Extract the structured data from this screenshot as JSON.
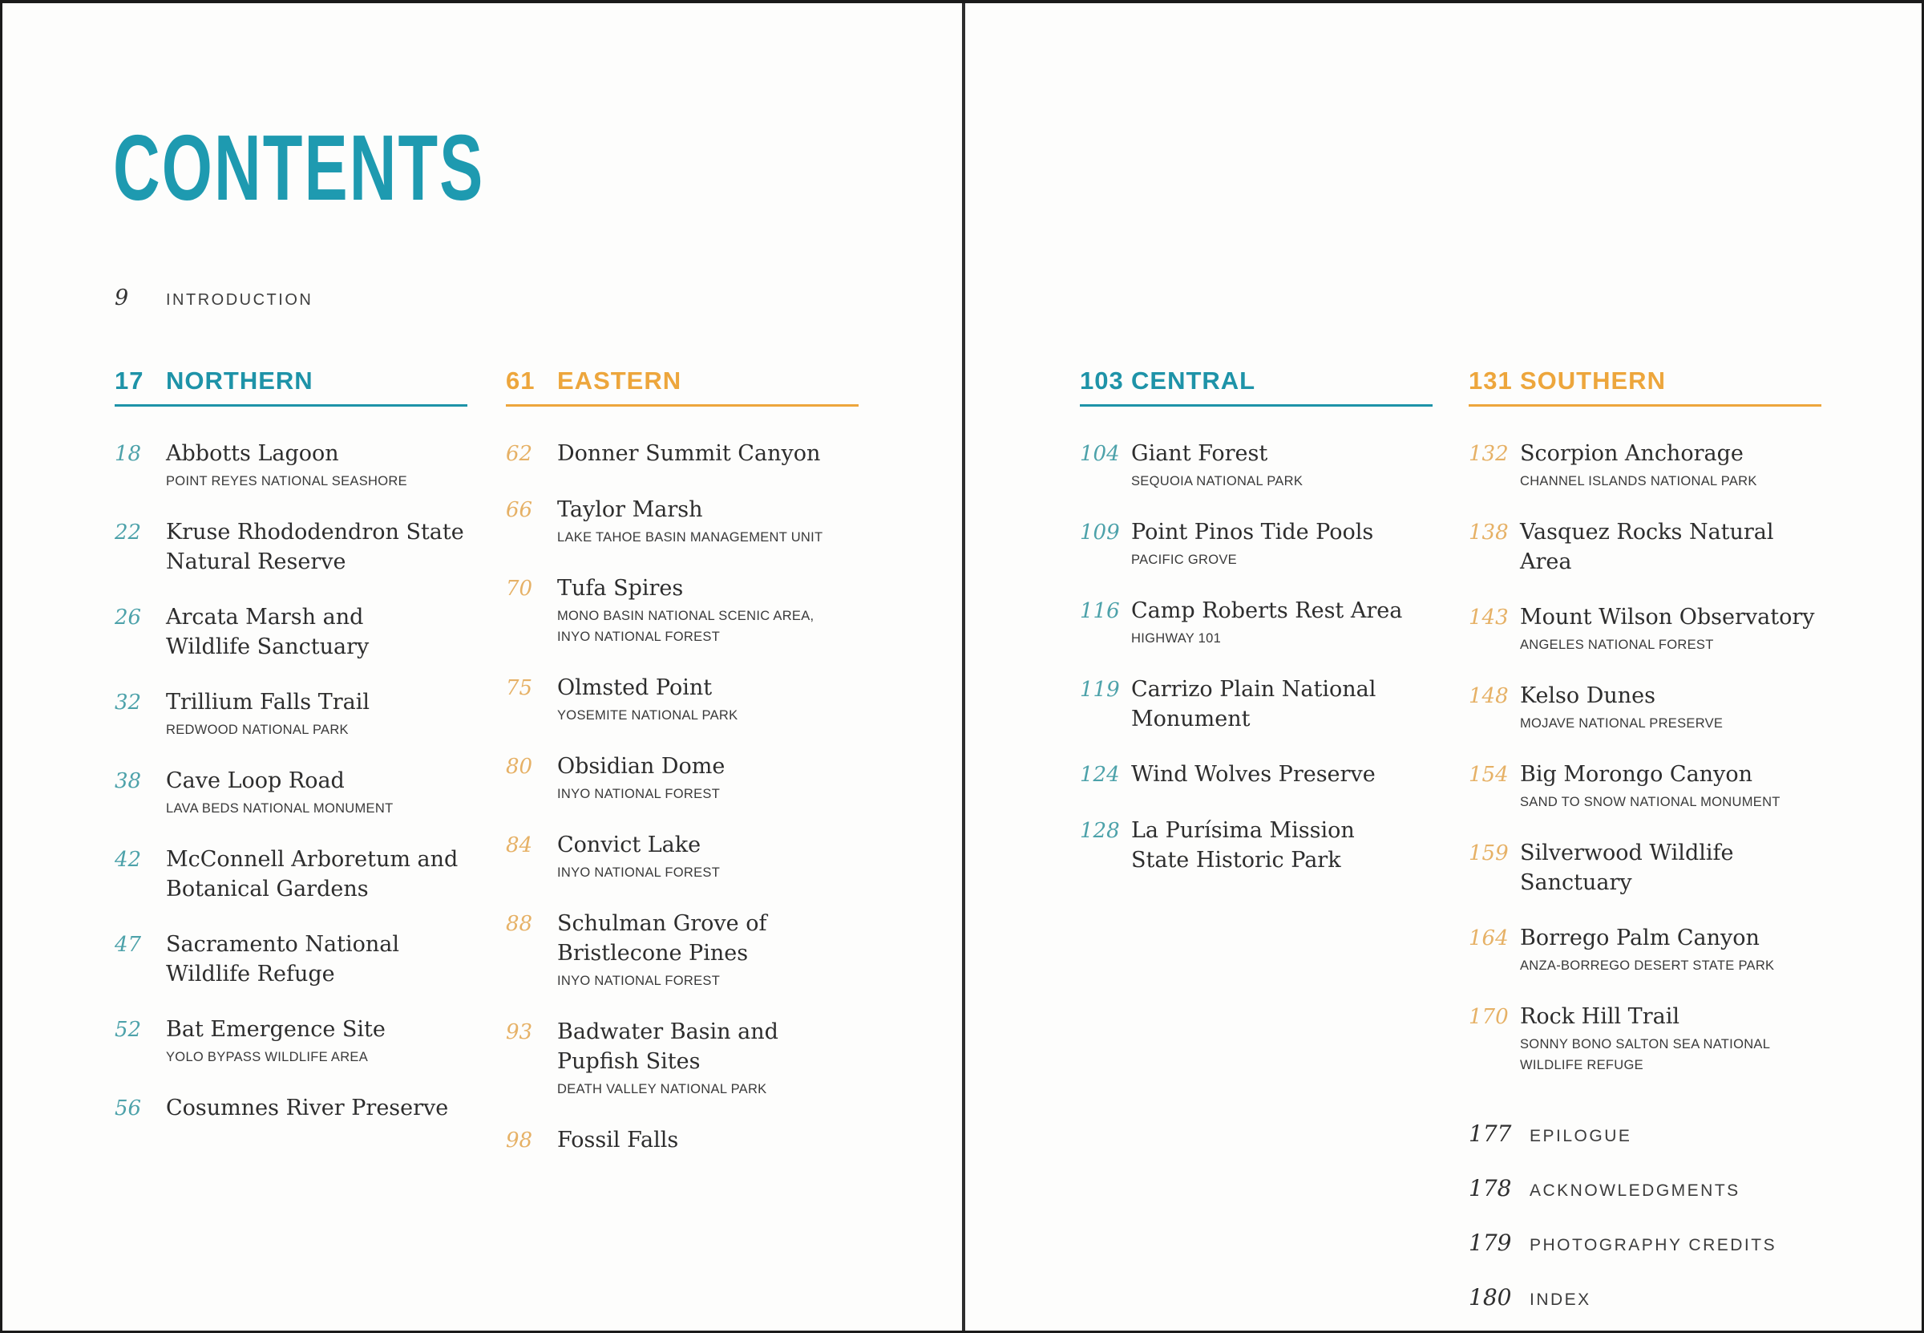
{
  "title": "CONTENTS",
  "colors": {
    "title_teal": "#1E9AB0",
    "teal": "#1E93A8",
    "teal_light": "#4DA2AA",
    "orange": "#EDA63C",
    "orange_light": "#E6B166",
    "ink": "#2D2D2D",
    "frame": "#1B1B1B"
  },
  "introduction": {
    "page": "9",
    "label": "INTRODUCTION"
  },
  "sections": [
    {
      "page": "17",
      "title": "NORTHERN",
      "theme": "teal",
      "entries": [
        {
          "page": "18",
          "title": "Abbotts Lagoon",
          "subtitle": "POINT REYES NATIONAL SEASHORE"
        },
        {
          "page": "22",
          "title": "Kruse Rhododendron State\nNatural Reserve"
        },
        {
          "page": "26",
          "title": "Arcata Marsh and\nWildlife Sanctuary"
        },
        {
          "page": "32",
          "title": "Trillium Falls Trail",
          "subtitle": "REDWOOD NATIONAL PARK"
        },
        {
          "page": "38",
          "title": "Cave Loop Road",
          "subtitle": "LAVA BEDS NATIONAL MONUMENT"
        },
        {
          "page": "42",
          "title": "McConnell Arboretum and\nBotanical Gardens"
        },
        {
          "page": "47",
          "title": "Sacramento National\nWildlife Refuge"
        },
        {
          "page": "52",
          "title": "Bat Emergence Site",
          "subtitle": "YOLO BYPASS WILDLIFE AREA"
        },
        {
          "page": "56",
          "title": "Cosumnes River Preserve"
        }
      ]
    },
    {
      "page": "61",
      "title": "EASTERN",
      "theme": "orange",
      "entries": [
        {
          "page": "62",
          "title": "Donner Summit Canyon"
        },
        {
          "page": "66",
          "title": "Taylor Marsh",
          "subtitle": "LAKE TAHOE BASIN MANAGEMENT UNIT"
        },
        {
          "page": "70",
          "title": "Tufa Spires",
          "subtitle": "MONO BASIN NATIONAL SCENIC AREA,\nINYO NATIONAL FOREST"
        },
        {
          "page": "75",
          "title": "Olmsted Point",
          "subtitle": "YOSEMITE NATIONAL PARK"
        },
        {
          "page": "80",
          "title": "Obsidian Dome",
          "subtitle": "INYO NATIONAL FOREST"
        },
        {
          "page": "84",
          "title": "Convict Lake",
          "subtitle": "INYO NATIONAL FOREST"
        },
        {
          "page": "88",
          "title": "Schulman Grove of\nBristlecone Pines",
          "subtitle": "INYO NATIONAL FOREST"
        },
        {
          "page": "93",
          "title": "Badwater Basin and Pupfish Sites",
          "subtitle": "DEATH VALLEY NATIONAL PARK"
        },
        {
          "page": "98",
          "title": "Fossil Falls"
        }
      ]
    },
    {
      "page": "103",
      "title": "CENTRAL",
      "theme": "teal",
      "entries": [
        {
          "page": "104",
          "title": "Giant Forest",
          "subtitle": "SEQUOIA NATIONAL PARK"
        },
        {
          "page": "109",
          "title": "Point Pinos Tide Pools",
          "subtitle": "PACIFIC GROVE"
        },
        {
          "page": "116",
          "title": "Camp Roberts Rest Area",
          "subtitle": "HIGHWAY 101"
        },
        {
          "page": "119",
          "title": "Carrizo Plain National Monument"
        },
        {
          "page": "124",
          "title": "Wind Wolves Preserve"
        },
        {
          "page": "128",
          "title": "La Purísima Mission\nState Historic Park"
        }
      ]
    },
    {
      "page": "131",
      "title": "SOUTHERN",
      "theme": "orange",
      "entries": [
        {
          "page": "132",
          "title": "Scorpion Anchorage",
          "subtitle": "CHANNEL ISLANDS NATIONAL PARK"
        },
        {
          "page": "138",
          "title": "Vasquez Rocks Natural Area"
        },
        {
          "page": "143",
          "title": "Mount Wilson Observatory",
          "subtitle": "ANGELES NATIONAL FOREST"
        },
        {
          "page": "148",
          "title": "Kelso Dunes",
          "subtitle": "MOJAVE NATIONAL PRESERVE"
        },
        {
          "page": "154",
          "title": "Big Morongo Canyon",
          "subtitle": "SAND TO SNOW NATIONAL MONUMENT"
        },
        {
          "page": "159",
          "title": "Silverwood Wildlife Sanctuary"
        },
        {
          "page": "164",
          "title": "Borrego Palm Canyon",
          "subtitle": "ANZA-BORREGO DESERT STATE PARK"
        },
        {
          "page": "170",
          "title": "Rock Hill Trail",
          "subtitle": "SONNY BONO SALTON SEA NATIONAL\nWILDLIFE REFUGE"
        }
      ]
    }
  ],
  "end_matter": [
    {
      "page": "177",
      "label": "EPILOGUE"
    },
    {
      "page": "178",
      "label": "ACKNOWLEDGMENTS"
    },
    {
      "page": "179",
      "label": "PHOTOGRAPHY CREDITS"
    },
    {
      "page": "180",
      "label": "INDEX"
    }
  ]
}
